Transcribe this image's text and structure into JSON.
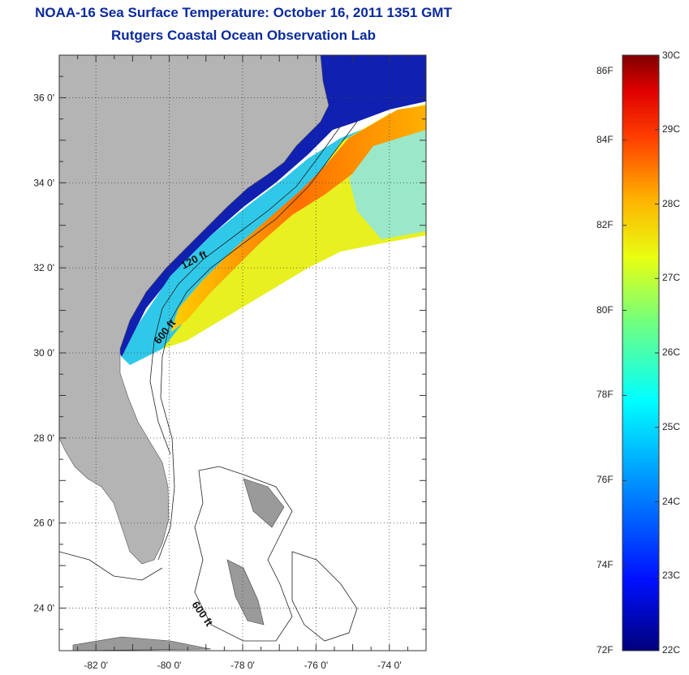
{
  "title": "NOAA-16 Sea Surface Temperature:  October 16, 2011 1351 GMT",
  "subtitle": "Rutgers Coastal Ocean Observation Lab",
  "map": {
    "lon_range": [
      -83,
      -73
    ],
    "lat_range": [
      23,
      37
    ],
    "lat_ticks": [
      {
        "value": 36,
        "label": "36 0'"
      },
      {
        "value": 34,
        "label": "34 0'"
      },
      {
        "value": 32,
        "label": "32 0'"
      },
      {
        "value": 30,
        "label": "30 0'"
      },
      {
        "value": 28,
        "label": "28 0'"
      },
      {
        "value": 26,
        "label": "26 0'"
      },
      {
        "value": 24,
        "label": "24 0'"
      }
    ],
    "lon_ticks": [
      {
        "value": -82,
        "label": "-82 0'"
      },
      {
        "value": -80,
        "label": "-80 0'"
      },
      {
        "value": -78,
        "label": "-78 0'"
      },
      {
        "value": -76,
        "label": "-76 0'"
      },
      {
        "value": -74,
        "label": "-74 0'"
      }
    ],
    "contour_labels": [
      "120 ft",
      "600 ft",
      "600 ft"
    ],
    "colors": {
      "land": "#b4b4b4",
      "cloud": "#ffffff",
      "cold": "#1020c0",
      "gulf_stream": "#ff6a10"
    }
  },
  "colorbar": {
    "range_c": [
      22,
      30
    ],
    "range_f": [
      72,
      86
    ],
    "celsius_labels": [
      "30C",
      "29C",
      "28C",
      "27C",
      "26C",
      "25C",
      "24C",
      "23C",
      "22C"
    ],
    "fahrenheit_labels": [
      "86F",
      "84F",
      "82F",
      "80F",
      "78F",
      "76F",
      "74F",
      "72F"
    ]
  }
}
